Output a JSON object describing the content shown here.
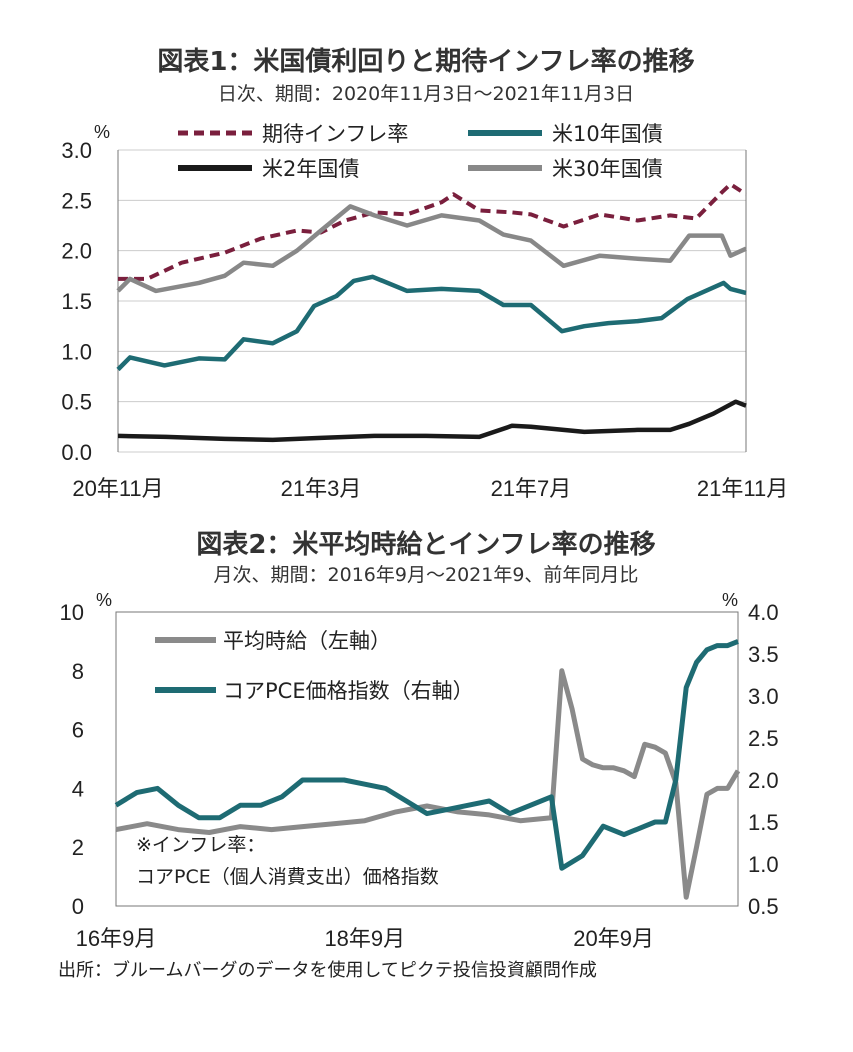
{
  "source": "出所：ブルームバーグのデータを使用してピクテ投信投資顧問作成",
  "chart_data": [
    {
      "type": "line",
      "title": "図表1：米国債利回りと期待インフレ率の推移",
      "subtitle": "日次、期間：2020年11月3日～2021年11月3日",
      "ylabel": "%",
      "ylim": [
        0,
        3.0
      ],
      "yticks": [
        "3.0",
        "2.5",
        "2.0",
        "1.5",
        "1.0",
        "0.5",
        "0.0"
      ],
      "xlim": [
        "2020-11-03",
        "2021-11-03"
      ],
      "xticks": [
        {
          "date": "2020-11-03",
          "label": "20年11月"
        },
        {
          "date": "2021-03-01",
          "label": "21年3月"
        },
        {
          "date": "2021-07-01",
          "label": "21年7月"
        },
        {
          "date": "2021-11-01",
          "label": "21年11月"
        }
      ],
      "grid": "horizontal",
      "legend": "top",
      "series": [
        {
          "name": "期待インフレ率",
          "color": "#7a1f3d",
          "dash": true,
          "x": [
            "2020-11-03",
            "2020-11-20",
            "2020-12-10",
            "2021-01-04",
            "2021-01-25",
            "2021-02-15",
            "2021-03-01",
            "2021-03-15",
            "2021-04-01",
            "2021-04-20",
            "2021-05-10",
            "2021-05-17",
            "2021-06-01",
            "2021-06-20",
            "2021-07-01",
            "2021-07-20",
            "2021-08-10",
            "2021-09-01",
            "2021-09-20",
            "2021-10-05",
            "2021-10-20",
            "2021-10-25",
            "2021-11-03"
          ],
          "values": [
            1.72,
            1.72,
            1.88,
            1.98,
            2.12,
            2.2,
            2.18,
            2.3,
            2.38,
            2.36,
            2.48,
            2.56,
            2.4,
            2.38,
            2.36,
            2.24,
            2.36,
            2.3,
            2.35,
            2.32,
            2.58,
            2.66,
            2.56
          ]
        },
        {
          "name": "米10年国債",
          "color": "#1e6b73",
          "dash": false,
          "x": [
            "2020-11-03",
            "2020-11-10",
            "2020-11-30",
            "2020-12-20",
            "2021-01-04",
            "2021-01-15",
            "2021-02-01",
            "2021-02-15",
            "2021-02-25",
            "2021-03-10",
            "2021-03-20",
            "2021-03-31",
            "2021-04-20",
            "2021-05-10",
            "2021-06-01",
            "2021-06-15",
            "2021-07-01",
            "2021-07-19",
            "2021-08-01",
            "2021-08-15",
            "2021-09-01",
            "2021-09-15",
            "2021-09-30",
            "2021-10-21",
            "2021-10-25",
            "2021-11-03"
          ],
          "values": [
            0.82,
            0.94,
            0.86,
            0.93,
            0.92,
            1.12,
            1.08,
            1.2,
            1.45,
            1.55,
            1.7,
            1.74,
            1.6,
            1.62,
            1.6,
            1.46,
            1.46,
            1.2,
            1.25,
            1.28,
            1.3,
            1.33,
            1.52,
            1.68,
            1.62,
            1.58
          ]
        },
        {
          "name": "米2年国債",
          "color": "#1a1a1a",
          "dash": false,
          "x": [
            "2020-11-03",
            "2020-12-01",
            "2021-01-04",
            "2021-02-01",
            "2021-03-01",
            "2021-04-01",
            "2021-05-01",
            "2021-06-01",
            "2021-06-20",
            "2021-07-01",
            "2021-08-01",
            "2021-09-01",
            "2021-09-20",
            "2021-10-01",
            "2021-10-15",
            "2021-10-28",
            "2021-11-03"
          ],
          "values": [
            0.16,
            0.15,
            0.13,
            0.12,
            0.14,
            0.16,
            0.16,
            0.15,
            0.26,
            0.25,
            0.2,
            0.22,
            0.22,
            0.28,
            0.38,
            0.5,
            0.46
          ]
        },
        {
          "name": "米30年国債",
          "color": "#888888",
          "dash": false,
          "x": [
            "2020-11-03",
            "2020-11-10",
            "2020-11-25",
            "2020-12-20",
            "2021-01-04",
            "2021-01-15",
            "2021-02-01",
            "2021-02-15",
            "2021-03-01",
            "2021-03-18",
            "2021-04-01",
            "2021-04-20",
            "2021-05-10",
            "2021-06-01",
            "2021-06-15",
            "2021-07-01",
            "2021-07-20",
            "2021-08-10",
            "2021-09-01",
            "2021-09-20",
            "2021-10-01",
            "2021-10-20",
            "2021-10-25",
            "2021-11-03"
          ],
          "values": [
            1.6,
            1.72,
            1.6,
            1.68,
            1.75,
            1.88,
            1.85,
            2.0,
            2.2,
            2.44,
            2.35,
            2.25,
            2.35,
            2.3,
            2.16,
            2.1,
            1.85,
            1.95,
            1.92,
            1.9,
            2.15,
            2.15,
            1.95,
            2.02
          ]
        }
      ]
    },
    {
      "type": "line",
      "title": "図表2：米平均時給とインフレ率の推移",
      "subtitle": "月次、期間：2016年9月～2021年9、前年同月比",
      "ylabel_left": "%",
      "ylabel_right": "%",
      "ylim_left": [
        0,
        10
      ],
      "ylim_right": [
        0.5,
        4.0
      ],
      "yticks_left": [
        "10",
        "8",
        "6",
        "4",
        "2",
        "0"
      ],
      "yticks_right": [
        "4.0",
        "3.5",
        "3.0",
        "2.5",
        "2.0",
        "1.5",
        "1.0",
        "0.5"
      ],
      "xlim": [
        "2016-09",
        "2021-09"
      ],
      "xticks": [
        {
          "date": "2016-09",
          "label": "16年9月"
        },
        {
          "date": "2018-09",
          "label": "18年9月"
        },
        {
          "date": "2020-09",
          "label": "20年9月"
        }
      ],
      "grid": "none",
      "legend": "top-left",
      "note": [
        "※インフレ率：",
        "コアPCE（個人消費支出）価格指数"
      ],
      "series": [
        {
          "name": "平均時給（左軸）",
          "axis": "left",
          "color": "#8a8a8a",
          "x": [
            "2016-09",
            "2016-12",
            "2017-03",
            "2017-06",
            "2017-09",
            "2017-12",
            "2018-03",
            "2018-06",
            "2018-09",
            "2018-12",
            "2019-03",
            "2019-06",
            "2019-09",
            "2019-12",
            "2020-03",
            "2020-04",
            "2020-05",
            "2020-06",
            "2020-07",
            "2020-08",
            "2020-09",
            "2020-10",
            "2020-11",
            "2020-12",
            "2021-01",
            "2021-02",
            "2021-03",
            "2021-04",
            "2021-05",
            "2021-06",
            "2021-07",
            "2021-08",
            "2021-09"
          ],
          "values": [
            2.6,
            2.8,
            2.6,
            2.5,
            2.7,
            2.6,
            2.7,
            2.8,
            2.9,
            3.2,
            3.4,
            3.2,
            3.1,
            2.9,
            3.0,
            8.0,
            6.7,
            5.0,
            4.8,
            4.7,
            4.7,
            4.6,
            4.4,
            5.5,
            5.4,
            5.2,
            4.2,
            0.3,
            2.0,
            3.8,
            4.0,
            4.0,
            4.6
          ]
        },
        {
          "name": "コアPCE価格指数（右軸）",
          "axis": "right",
          "color": "#1e6b73",
          "x": [
            "2016-09",
            "2016-11",
            "2017-01",
            "2017-03",
            "2017-05",
            "2017-07",
            "2017-09",
            "2017-11",
            "2018-01",
            "2018-03",
            "2018-05",
            "2018-07",
            "2018-09",
            "2018-11",
            "2019-01",
            "2019-03",
            "2019-05",
            "2019-07",
            "2019-09",
            "2019-11",
            "2020-01",
            "2020-03",
            "2020-04",
            "2020-06",
            "2020-08",
            "2020-10",
            "2020-12",
            "2021-01",
            "2021-02",
            "2021-03",
            "2021-04",
            "2021-05",
            "2021-06",
            "2021-07",
            "2021-08",
            "2021-09"
          ],
          "values": [
            1.7,
            1.85,
            1.9,
            1.7,
            1.55,
            1.55,
            1.7,
            1.7,
            1.8,
            2.0,
            2.0,
            2.0,
            1.95,
            1.9,
            1.75,
            1.6,
            1.65,
            1.7,
            1.75,
            1.6,
            1.7,
            1.8,
            0.95,
            1.1,
            1.45,
            1.35,
            1.45,
            1.5,
            1.5,
            2.0,
            3.1,
            3.4,
            3.55,
            3.6,
            3.6,
            3.65
          ]
        }
      ]
    }
  ]
}
